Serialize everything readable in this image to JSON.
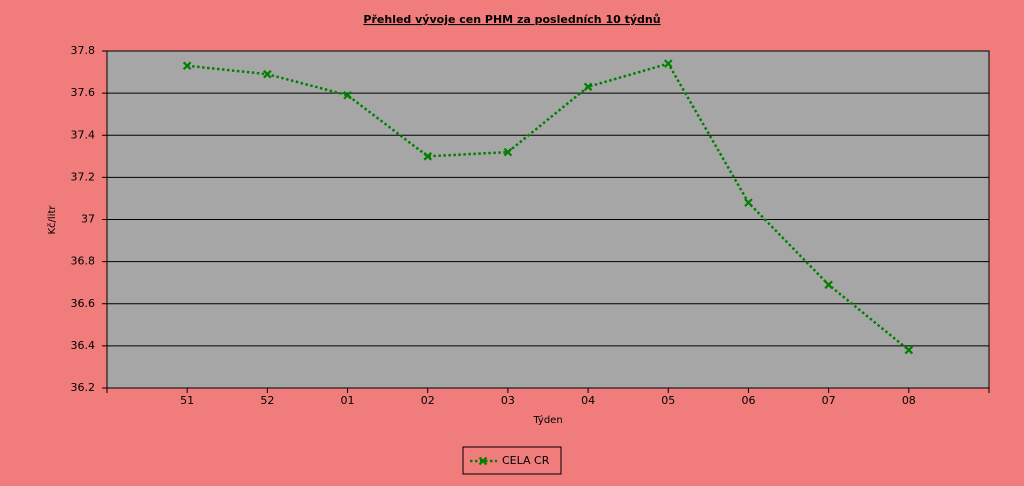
{
  "chart_data": {
    "type": "line",
    "title": "Přehled vývoje cen PHM za posledních 10 týdnů",
    "x_label": "Týden",
    "y_label": "Kč/litr",
    "categories": [
      "51",
      "52",
      "01",
      "02",
      "03",
      "04",
      "05",
      "06",
      "07",
      "08"
    ],
    "series": [
      {
        "name": "CELA CR",
        "color": "#008000",
        "values": [
          37.73,
          37.69,
          37.59,
          37.3,
          37.32,
          37.63,
          37.74,
          37.08,
          36.69,
          36.38
        ]
      }
    ],
    "ylim": [
      36.2,
      37.8
    ],
    "yticks": [
      36.2,
      36.4,
      36.6,
      36.8,
      37,
      37.2,
      37.4,
      37.6,
      37.8
    ],
    "grid": true,
    "legend": "bottom"
  }
}
